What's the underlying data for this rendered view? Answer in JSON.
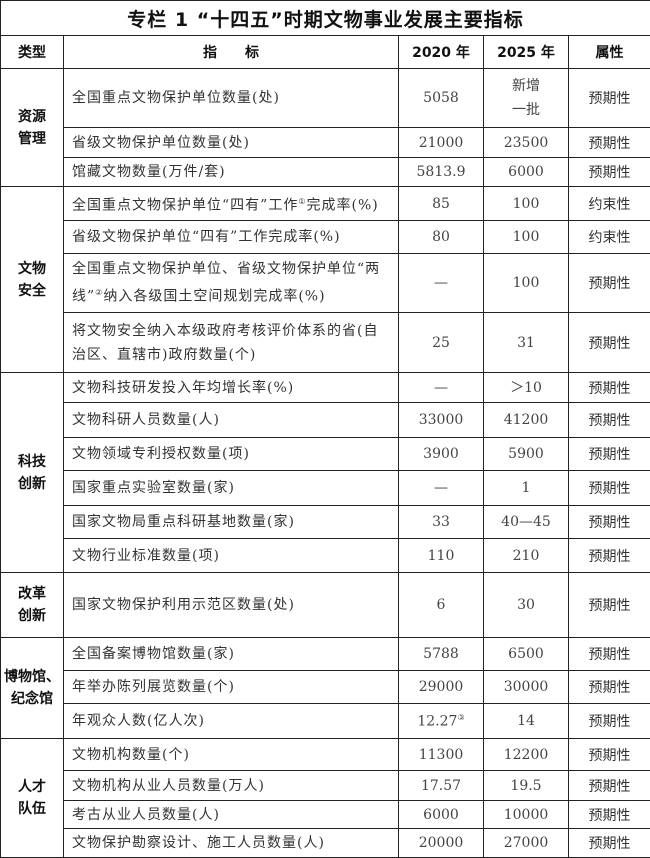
{
  "title": "专栏 1 “十四五”时期文物事业发展主要指标",
  "headers": {
    "type": "类型",
    "indicator": "指　　标",
    "y2020": "2020 年",
    "y2025": "2025 年",
    "attr": "属性"
  },
  "groups": [
    {
      "name": "资源\n管理",
      "rows": [
        {
          "pre": "全国重点文物保护单位数量(处)",
          "v2020": "5058",
          "v2025": "新增\n一批",
          "attr": "预期性",
          "h": 59
        },
        {
          "pre": "省级文物保护单位数量(处)",
          "v2020": "21000",
          "v2025": "23500",
          "attr": "预期性",
          "h": 30
        },
        {
          "pre": "馆藏文物数量(万件/套)",
          "v2020": "5813.9",
          "v2025": "6000",
          "attr": "预期性",
          "h": 29
        }
      ]
    },
    {
      "name": "文物\n安全",
      "rows": [
        {
          "pre": "全国重点文物保护单位“四有”工作",
          "note": "①",
          "post": "完成率(%)",
          "v2020": "85",
          "v2025": "100",
          "attr": "约束性",
          "h": 34
        },
        {
          "pre": "省级文物保护单位“四有”工作完成率(%)",
          "v2020": "80",
          "v2025": "100",
          "attr": "约束性",
          "h": 33
        },
        {
          "pre": "全国重点文物保护单位、省级文物保护单位“两线”",
          "note": "②",
          "post": "纳入各级国土空间规划完成率(%)",
          "v2020": "—",
          "v2025": "100",
          "attr": "预期性",
          "h": 59
        },
        {
          "pre": "将文物安全纳入本级政府考核评价体系的省(自治区、直辖市)政府数量(个)",
          "v2020": "25",
          "v2025": "31",
          "attr": "预期性",
          "h": 60
        }
      ]
    },
    {
      "name": "科技\n创新",
      "rows": [
        {
          "pre": "文物科技研发投入年均增长率(%)",
          "v2020": "—",
          "v2025": "＞10",
          "attr": "预期性",
          "h": 30
        },
        {
          "pre": "文物科研人员数量(人)",
          "v2020": "33000",
          "v2025": "41200",
          "attr": "预期性",
          "h": 35
        },
        {
          "pre": "文物领域专利授权数量(项)",
          "v2020": "3900",
          "v2025": "5900",
          "attr": "预期性",
          "h": 33
        },
        {
          "pre": "国家重点实验室数量(家)",
          "v2020": "—",
          "v2025": "1",
          "attr": "预期性",
          "h": 35
        },
        {
          "pre": "国家文物局重点科研基地数量(家)",
          "v2020": "33",
          "v2025": "40—45",
          "attr": "预期性",
          "h": 33
        },
        {
          "pre": "文物行业标准数量(项)",
          "v2020": "110",
          "v2025": "210",
          "attr": "预期性",
          "h": 34
        }
      ]
    },
    {
      "name": "改革\n创新",
      "rows": [
        {
          "pre": "国家文物保护利用示范区数量(处)",
          "v2020": "6",
          "v2025": "30",
          "attr": "预期性",
          "h": 65
        }
      ]
    },
    {
      "name": "博物馆、\n纪念馆",
      "rows": [
        {
          "pre": "全国备案博物馆数量(家)",
          "v2020": "5788",
          "v2025": "6500",
          "attr": "预期性",
          "h": 33
        },
        {
          "pre": "年举办陈列展览数量(个)",
          "v2020": "29000",
          "v2025": "30000",
          "attr": "预期性",
          "h": 33
        },
        {
          "pre": "年观众人数(亿人次)",
          "v2020": "12.27",
          "v2020_note": "③",
          "v2025": "14",
          "attr": "预期性",
          "h": 35
        }
      ]
    },
    {
      "name": "人才\n队伍",
      "rows": [
        {
          "pre": "文物机构数量(个)",
          "v2020": "11300",
          "v2025": "12200",
          "attr": "预期性",
          "h": 32
        },
        {
          "pre": "文物机构从业人员数量(万人)",
          "v2020": "17.57",
          "v2025": "19.5",
          "attr": "预期性",
          "h": 30
        },
        {
          "pre": "考古从业人员数量(人)",
          "v2020": "6000",
          "v2025": "10000",
          "attr": "预期性",
          "h": 28
        },
        {
          "pre": "文物保护勘察设计、施工人员数量(人)",
          "v2020": "20000",
          "v2025": "27000",
          "attr": "预期性",
          "h": 29
        }
      ]
    }
  ]
}
